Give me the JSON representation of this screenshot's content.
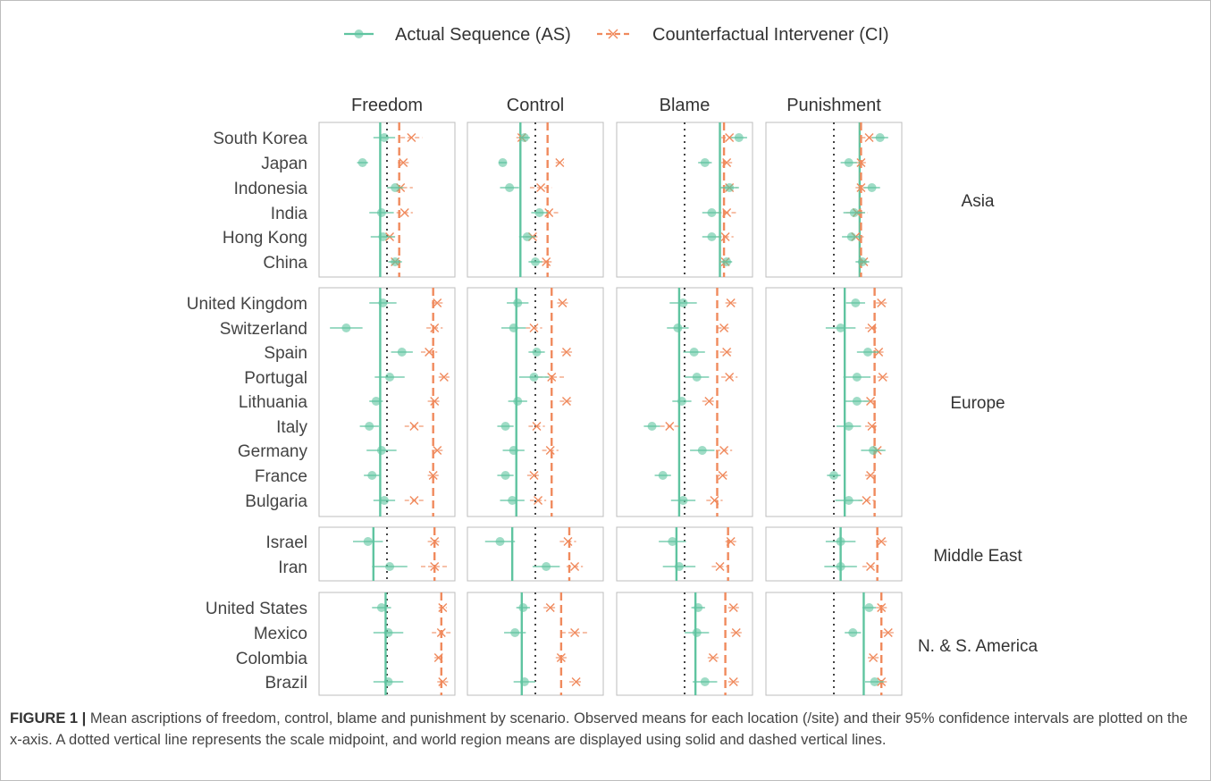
{
  "chart_data": {
    "type": "scatter",
    "legend_position": "top",
    "legend": [
      {
        "name": "Actual Sequence (AS)",
        "color": "#5fc4a0",
        "marker": "circle",
        "line": "solid"
      },
      {
        "name": "Counterfactual Intervener (CI)",
        "color": "#f08a5d",
        "marker": "x",
        "line": "dashed"
      }
    ],
    "facets": [
      "Freedom",
      "Control",
      "Blame",
      "Punishment"
    ],
    "midpoint": 3.5,
    "regions": [
      {
        "name": "Asia",
        "countries": [
          "South Korea",
          "Japan",
          "Indonesia",
          "India",
          "Hong Kong",
          "China"
        ],
        "region_means": {
          "Freedom": {
            "AS": 3.25,
            "CI": 3.95
          },
          "Control": {
            "AS": 2.95,
            "CI": 3.95
          },
          "Blame": {
            "AS": 4.8,
            "CI": 4.95
          },
          "Punishment": {
            "AS": 4.45,
            "CI": 4.5
          }
        },
        "data": {
          "Freedom": {
            "AS": [
              [
                3.4,
                0.4
              ],
              [
                2.6,
                0.2
              ],
              [
                3.8,
                0.3
              ],
              [
                3.3,
                0.45
              ],
              [
                3.35,
                0.45
              ],
              [
                3.8,
                0.25
              ]
            ],
            "CI": [
              [
                4.4,
                0.4
              ],
              [
                4.1,
                0.2
              ],
              [
                4.0,
                0.45
              ],
              [
                4.15,
                0.3
              ],
              [
                3.6,
                0.25
              ],
              [
                3.8,
                0.2
              ]
            ]
          },
          "Control": {
            "AS": [
              [
                3.1,
                0.2
              ],
              [
                2.3,
                0.15
              ],
              [
                2.55,
                0.35
              ],
              [
                3.65,
                0.3
              ],
              [
                3.2,
                0.3
              ],
              [
                3.5,
                0.25
              ]
            ],
            "CI": [
              [
                3.0,
                0.2
              ],
              [
                4.4,
                0.15
              ],
              [
                3.7,
                0.4
              ],
              [
                4.0,
                0.35
              ],
              [
                3.4,
                0.25
              ],
              [
                3.9,
                0.2
              ]
            ]
          },
          "Blame": {
            "AS": [
              [
                5.5,
                0.3
              ],
              [
                4.25,
                0.25
              ],
              [
                5.15,
                0.35
              ],
              [
                4.5,
                0.35
              ],
              [
                4.5,
                0.35
              ],
              [
                5.05,
                0.2
              ]
            ],
            "CI": [
              [
                5.15,
                0.3
              ],
              [
                5.05,
                0.2
              ],
              [
                5.15,
                0.3
              ],
              [
                5.05,
                0.35
              ],
              [
                5.0,
                0.3
              ],
              [
                5.0,
                0.2
              ]
            ]
          },
          "Punishment": {
            "AS": [
              [
                5.2,
                0.3
              ],
              [
                4.05,
                0.3
              ],
              [
                4.9,
                0.3
              ],
              [
                4.25,
                0.4
              ],
              [
                4.15,
                0.35
              ],
              [
                4.55,
                0.25
              ]
            ],
            "CI": [
              [
                4.8,
                0.3
              ],
              [
                4.5,
                0.25
              ],
              [
                4.5,
                0.2
              ],
              [
                4.35,
                0.4
              ],
              [
                4.3,
                0.3
              ],
              [
                4.6,
                0.2
              ]
            ]
          }
        }
      },
      {
        "name": "Europe",
        "countries": [
          "United Kingdom",
          "Switzerland",
          "Spain",
          "Portugal",
          "Lithuania",
          "Italy",
          "Germany",
          "France",
          "Bulgaria"
        ],
        "region_means": {
          "Freedom": {
            "AS": 3.25,
            "CI": 5.2
          },
          "Control": {
            "AS": 2.8,
            "CI": 4.1
          },
          "Blame": {
            "AS": 3.3,
            "CI": 4.7
          },
          "Punishment": {
            "AS": 3.9,
            "CI": 5.0
          }
        },
        "data": {
          "Freedom": {
            "AS": [
              [
                3.35,
                0.5
              ],
              [
                2.0,
                0.6
              ],
              [
                4.05,
                0.4
              ],
              [
                3.6,
                0.55
              ],
              [
                3.1,
                0.25
              ],
              [
                2.85,
                0.35
              ],
              [
                3.3,
                0.55
              ],
              [
                2.95,
                0.3
              ],
              [
                3.4,
                0.4
              ]
            ],
            "CI": [
              [
                5.35,
                0.2
              ],
              [
                5.25,
                0.3
              ],
              [
                5.05,
                0.3
              ],
              [
                5.6,
                0.2
              ],
              [
                5.25,
                0.25
              ],
              [
                4.5,
                0.35
              ],
              [
                5.35,
                0.2
              ],
              [
                5.2,
                0.2
              ],
              [
                4.5,
                0.35
              ]
            ]
          },
          "Control": {
            "AS": [
              [
                2.85,
                0.4
              ],
              [
                2.7,
                0.45
              ],
              [
                3.55,
                0.3
              ],
              [
                3.45,
                0.55
              ],
              [
                2.85,
                0.35
              ],
              [
                2.4,
                0.3
              ],
              [
                2.7,
                0.4
              ],
              [
                2.4,
                0.3
              ],
              [
                2.65,
                0.45
              ]
            ],
            "CI": [
              [
                4.5,
                0.2
              ],
              [
                3.45,
                0.3
              ],
              [
                4.65,
                0.2
              ],
              [
                4.1,
                0.5
              ],
              [
                4.65,
                0.25
              ],
              [
                3.55,
                0.3
              ],
              [
                4.05,
                0.3
              ],
              [
                3.45,
                0.25
              ],
              [
                3.6,
                0.3
              ]
            ]
          },
          "Blame": {
            "AS": [
              [
                3.45,
                0.5
              ],
              [
                3.25,
                0.4
              ],
              [
                3.85,
                0.4
              ],
              [
                3.95,
                0.45
              ],
              [
                3.4,
                0.35
              ],
              [
                2.3,
                0.3
              ],
              [
                4.15,
                0.45
              ],
              [
                2.7,
                0.3
              ],
              [
                3.45,
                0.45
              ]
            ],
            "CI": [
              [
                5.2,
                0.2
              ],
              [
                4.95,
                0.25
              ],
              [
                5.05,
                0.25
              ],
              [
                5.15,
                0.3
              ],
              [
                4.4,
                0.25
              ],
              [
                2.95,
                0.35
              ],
              [
                4.95,
                0.3
              ],
              [
                4.9,
                0.25
              ],
              [
                4.6,
                0.3
              ]
            ]
          },
          "Punishment": {
            "AS": [
              [
                4.3,
                0.35
              ],
              [
                3.75,
                0.55
              ],
              [
                4.75,
                0.4
              ],
              [
                4.35,
                0.5
              ],
              [
                4.35,
                0.45
              ],
              [
                4.05,
                0.45
              ],
              [
                4.95,
                0.45
              ],
              [
                3.5,
                0.25
              ],
              [
                4.05,
                0.5
              ]
            ],
            "CI": [
              [
                5.25,
                0.2
              ],
              [
                4.9,
                0.25
              ],
              [
                5.15,
                0.25
              ],
              [
                5.3,
                0.2
              ],
              [
                4.85,
                0.25
              ],
              [
                4.9,
                0.25
              ],
              [
                5.1,
                0.2
              ],
              [
                4.85,
                0.2
              ],
              [
                4.7,
                0.3
              ]
            ]
          }
        }
      },
      {
        "name": "Middle East",
        "countries": [
          "Israel",
          "Iran"
        ],
        "region_means": {
          "Freedom": {
            "AS": 3.0,
            "CI": 5.25
          },
          "Control": {
            "AS": 2.65,
            "CI": 4.75
          },
          "Blame": {
            "AS": 3.2,
            "CI": 5.1
          },
          "Punishment": {
            "AS": 3.75,
            "CI": 5.1
          }
        },
        "data": {
          "Freedom": {
            "AS": [
              [
                2.8,
                0.55
              ],
              [
                3.6,
                0.65
              ]
            ],
            "CI": [
              [
                5.25,
                0.25
              ],
              [
                5.25,
                0.5
              ]
            ]
          },
          "Control": {
            "AS": [
              [
                2.2,
                0.55
              ],
              [
                3.9,
                0.5
              ]
            ],
            "CI": [
              [
                4.7,
                0.3
              ],
              [
                4.95,
                0.3
              ]
            ]
          },
          "Blame": {
            "AS": [
              [
                3.05,
                0.5
              ],
              [
                3.3,
                0.6
              ]
            ],
            "CI": [
              [
                5.2,
                0.2
              ],
              [
                4.8,
                0.3
              ]
            ]
          },
          "Punishment": {
            "AS": [
              [
                3.75,
                0.55
              ],
              [
                3.75,
                0.6
              ]
            ],
            "CI": [
              [
                5.25,
                0.2
              ],
              [
                4.85,
                0.3
              ]
            ]
          }
        }
      },
      {
        "name": "N. & S. America",
        "countries": [
          "United States",
          "Mexico",
          "Colombia",
          "Brazil"
        ],
        "region_means": {
          "Freedom": {
            "AS": 3.45,
            "CI": 5.5
          },
          "Control": {
            "AS": 3.0,
            "CI": 4.45
          },
          "Blame": {
            "AS": 3.9,
            "CI": 5.0
          },
          "Punishment": {
            "AS": 4.6,
            "CI": 5.25
          }
        },
        "data": {
          "Freedom": {
            "AS": [
              [
                3.3,
                0.35
              ],
              [
                3.55,
                0.55
              ],
              null,
              [
                3.55,
                0.55
              ]
            ],
            "CI": [
              [
                5.55,
                0.15
              ],
              [
                5.5,
                0.35
              ],
              [
                5.4,
                0.15
              ],
              [
                5.55,
                0.2
              ]
            ]
          },
          "Control": {
            "AS": [
              [
                3.05,
                0.25
              ],
              [
                2.75,
                0.4
              ],
              null,
              [
                3.1,
                0.4
              ]
            ],
            "CI": [
              [
                4.05,
                0.25
              ],
              [
                4.95,
                0.5
              ],
              [
                4.45,
                0.2
              ],
              [
                5.0,
                0.25
              ]
            ]
          },
          "Blame": {
            "AS": [
              [
                4.0,
                0.25
              ],
              [
                3.95,
                0.45
              ],
              null,
              [
                4.25,
                0.45
              ]
            ],
            "CI": [
              [
                5.3,
                0.2
              ],
              [
                5.4,
                0.2
              ],
              [
                4.55,
                0.2
              ],
              [
                5.3,
                0.2
              ]
            ]
          },
          "Punishment": {
            "AS": [
              [
                4.8,
                0.25
              ],
              [
                4.2,
                0.3
              ],
              null,
              [
                5.0,
                0.35
              ]
            ],
            "CI": [
              [
                5.25,
                0.2
              ],
              [
                5.5,
                0.2
              ],
              [
                4.95,
                0.2
              ],
              [
                5.25,
                0.2
              ]
            ]
          }
        }
      }
    ]
  },
  "caption": {
    "label": "FIGURE 1 |",
    "text": " Mean ascriptions of freedom, control, blame and punishment by scenario. Observed means for each location (/site) and their 95% confidence intervals are plotted on the x-axis. A dotted vertical line represents the scale midpoint, and world region means are displayed using solid and dashed vertical lines."
  }
}
